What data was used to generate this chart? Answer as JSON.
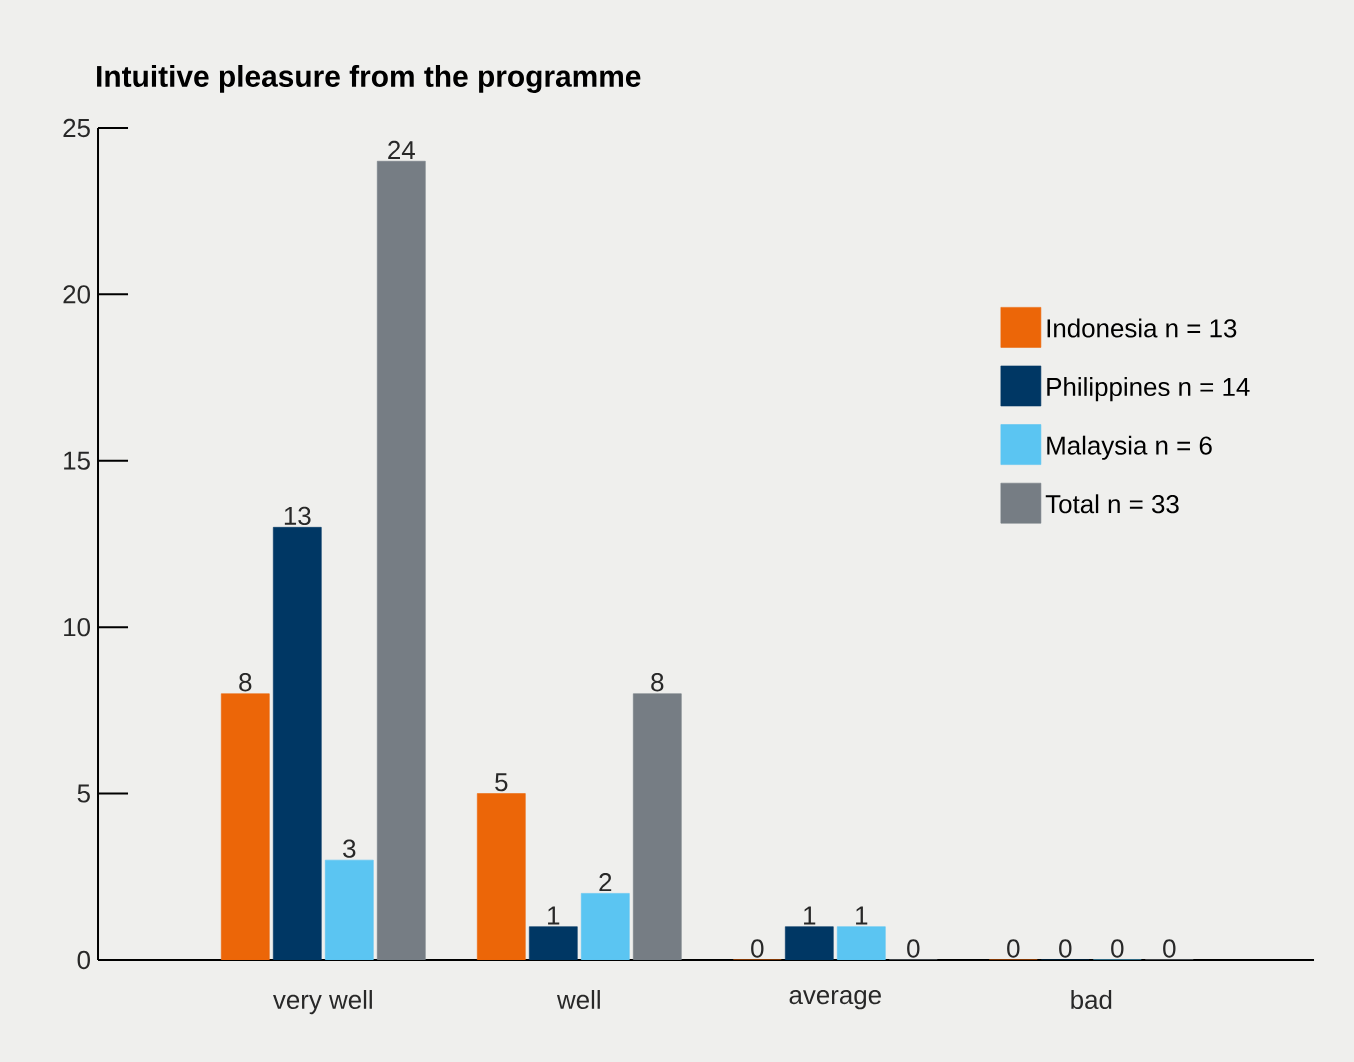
{
  "chart_data": {
    "type": "bar",
    "title": "Intuitive pleasure from the programme",
    "categories": [
      "very well",
      "well",
      "average",
      "bad"
    ],
    "series": [
      {
        "name": "Indonesia n = 13",
        "color": "#ec6608",
        "values": [
          8,
          5,
          0,
          0
        ]
      },
      {
        "name": "Philippines n = 14",
        "color": "#003764",
        "values": [
          13,
          1,
          1,
          0
        ]
      },
      {
        "name": "Malaysia n = 6",
        "color": "#5bc5f2",
        "values": [
          3,
          2,
          1,
          0
        ]
      },
      {
        "name": "Total n = 33",
        "color": "#767d84",
        "values": [
          24,
          8,
          0,
          0
        ]
      }
    ],
    "ylim": [
      0,
      25
    ],
    "yticks": [
      0,
      5,
      10,
      15,
      20,
      25
    ],
    "data_labels": true,
    "legend": "right",
    "grid": false
  }
}
